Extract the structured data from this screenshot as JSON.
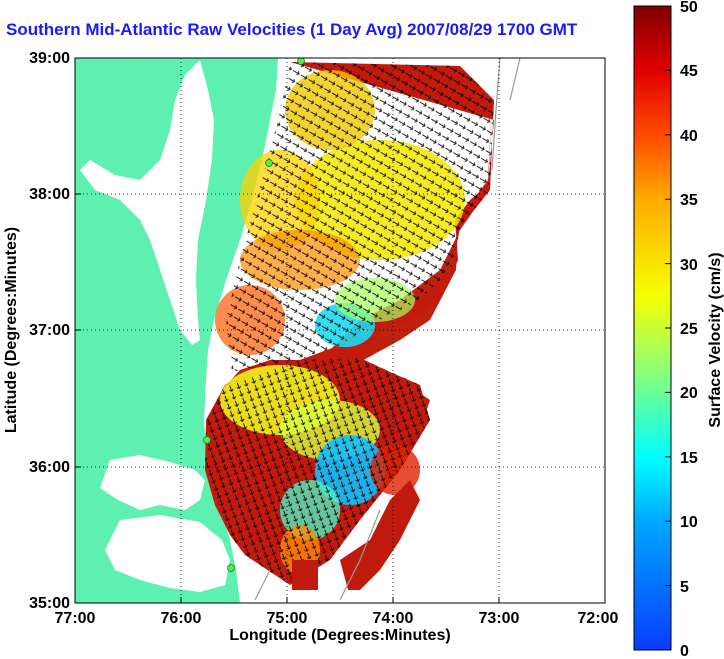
{
  "title": "Southern Mid-Atlantic Raw Velocities (1 Day Avg) 2007/08/29 1700 GMT",
  "map": {
    "x_axis_label": "Longitude (Degrees:Minutes)",
    "y_axis_label": "Latitude (Degrees:Minutes)",
    "x_ticks": [
      "77:00",
      "76:00",
      "75:00",
      "74:00",
      "73:00",
      "72:00"
    ],
    "y_ticks": [
      "39:00",
      "38:00",
      "37:00",
      "36:00",
      "35:00"
    ],
    "lon_range": [
      -77,
      -72
    ],
    "lat_range": [
      35,
      39
    ],
    "grid": "dotted",
    "colors": {
      "land": "#5ef0b0",
      "water": "#ffffff",
      "vectors": "#000000",
      "stations": "#4ef04a",
      "bathymetry": "#9a9a9a"
    }
  },
  "colorbar": {
    "label": "Surface Velocity (cm/s)",
    "ticks": [
      "0",
      "5",
      "10",
      "15",
      "20",
      "25",
      "30",
      "35",
      "40",
      "45",
      "50"
    ],
    "range": [
      0,
      50
    ],
    "colormap": "jet"
  }
}
